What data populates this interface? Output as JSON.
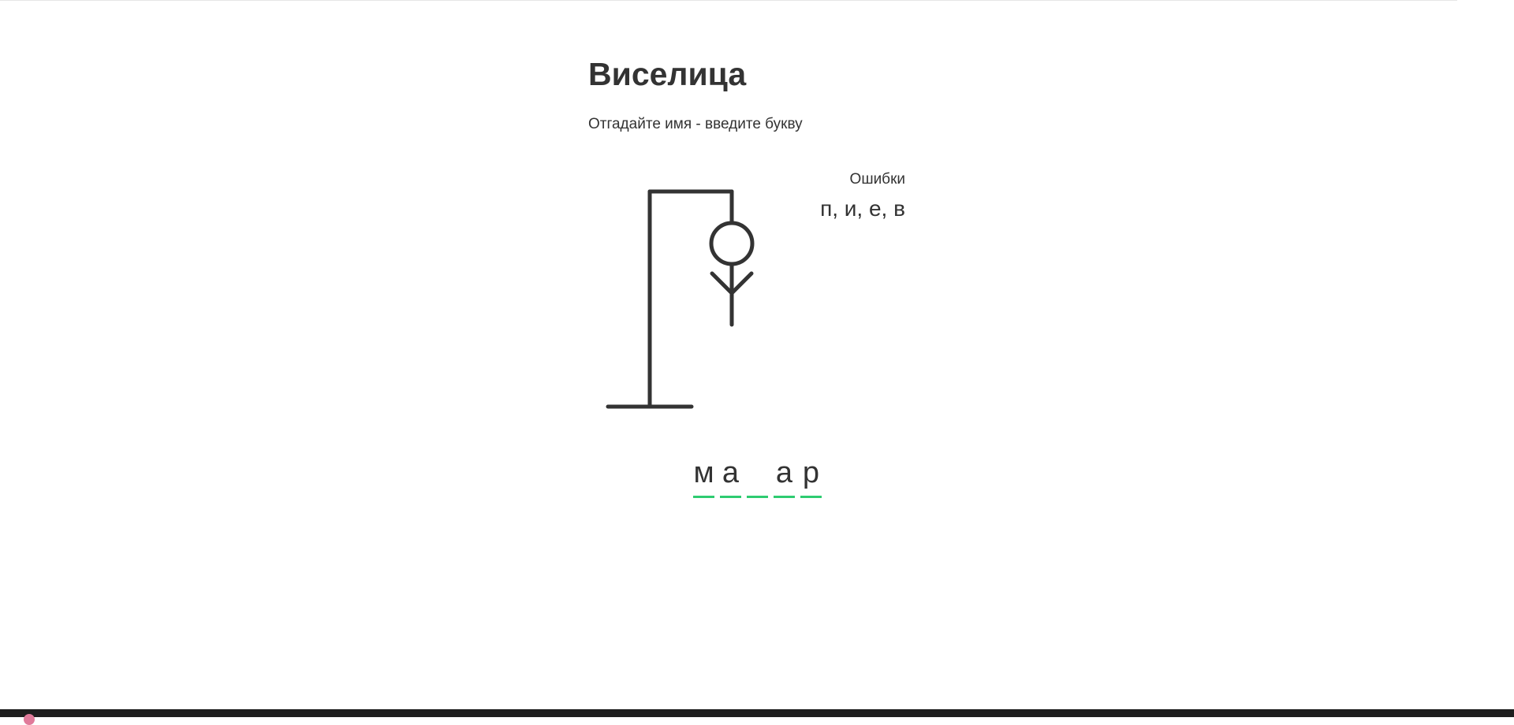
{
  "header": {
    "title": "Виселица",
    "subtitle": "Отгадайте имя - введите букву"
  },
  "wrong": {
    "label": "Ошибки",
    "letters": "п, и, е, в"
  },
  "word": {
    "slots": [
      "м",
      "а",
      "",
      "а",
      "р"
    ]
  },
  "game_state": {
    "wrong_count": 4,
    "figure_parts_shown": [
      "head",
      "body",
      "left-arm",
      "right-arm"
    ]
  },
  "colors": {
    "text": "#333333",
    "drawing": "#333333",
    "underline": "#2ecc71"
  }
}
